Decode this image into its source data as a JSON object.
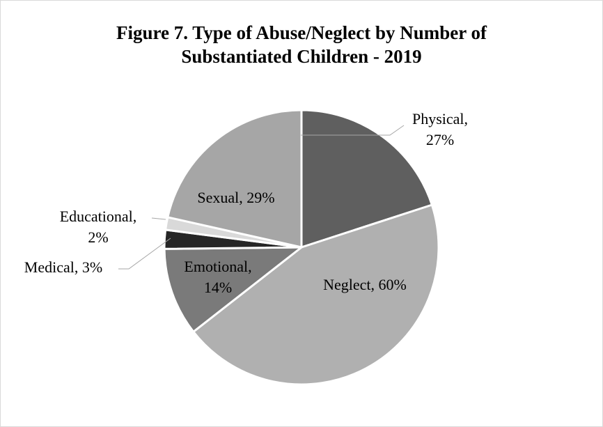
{
  "chart_data": {
    "type": "pie",
    "title": [
      "Figure 7. Type of Abuse/Neglect by Number of",
      "Substantiated Children - 2019"
    ],
    "slices": [
      {
        "name": "Physical",
        "value": 27,
        "color": "#5f5f5f",
        "label": [
          "Physical,",
          "27%"
        ]
      },
      {
        "name": "Neglect",
        "value": 60,
        "color": "#b0b0b0",
        "label": [
          "Neglect, 60%"
        ]
      },
      {
        "name": "Emotional",
        "value": 14,
        "color": "#7a7a7a",
        "label": [
          "Emotional,",
          "14%"
        ]
      },
      {
        "name": "Medical",
        "value": 3,
        "color": "#262626",
        "label": [
          "Medical, 3%"
        ]
      },
      {
        "name": "Educational",
        "value": 2,
        "color": "#d9d9d9",
        "label": [
          "Educational,",
          "2%"
        ]
      },
      {
        "name": "Sexual",
        "value": 29,
        "color": "#a6a6a6",
        "label": [
          "Sexual, 29%"
        ]
      }
    ],
    "legend": "none",
    "labels": "data-labels"
  }
}
